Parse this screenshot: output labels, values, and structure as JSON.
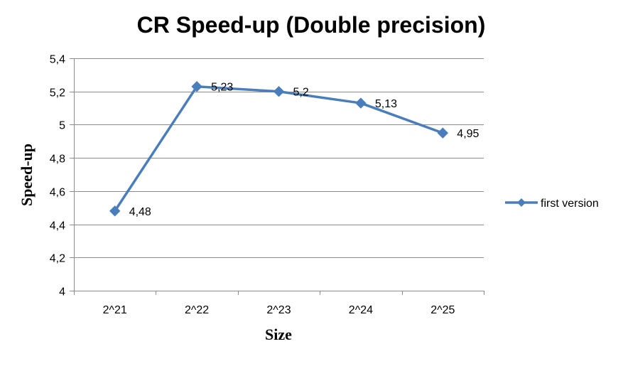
{
  "chart_data": {
    "type": "line",
    "title": "CR Speed-up (Double precision)",
    "xlabel": "Size",
    "ylabel": "Speed-up",
    "categories": [
      "2^21",
      "2^22",
      "2^23",
      "2^24",
      "2^25"
    ],
    "series": [
      {
        "name": "first version",
        "values": [
          4.48,
          5.23,
          5.2,
          5.13,
          4.95
        ],
        "data_labels": [
          "4,48",
          "5,23",
          "5,2",
          "5,13",
          "4,95"
        ],
        "color": "#4a7ebb",
        "marker": "diamond"
      }
    ],
    "ylim": [
      4,
      5.4
    ],
    "yticks": [
      4,
      4.2,
      4.4,
      4.6,
      4.8,
      5,
      5.2,
      5.4
    ],
    "ytick_labels": [
      "4",
      "4,2",
      "4,4",
      "4,6",
      "4,8",
      "5",
      "5,2",
      "5,4"
    ],
    "grid": true,
    "legend": "right"
  }
}
